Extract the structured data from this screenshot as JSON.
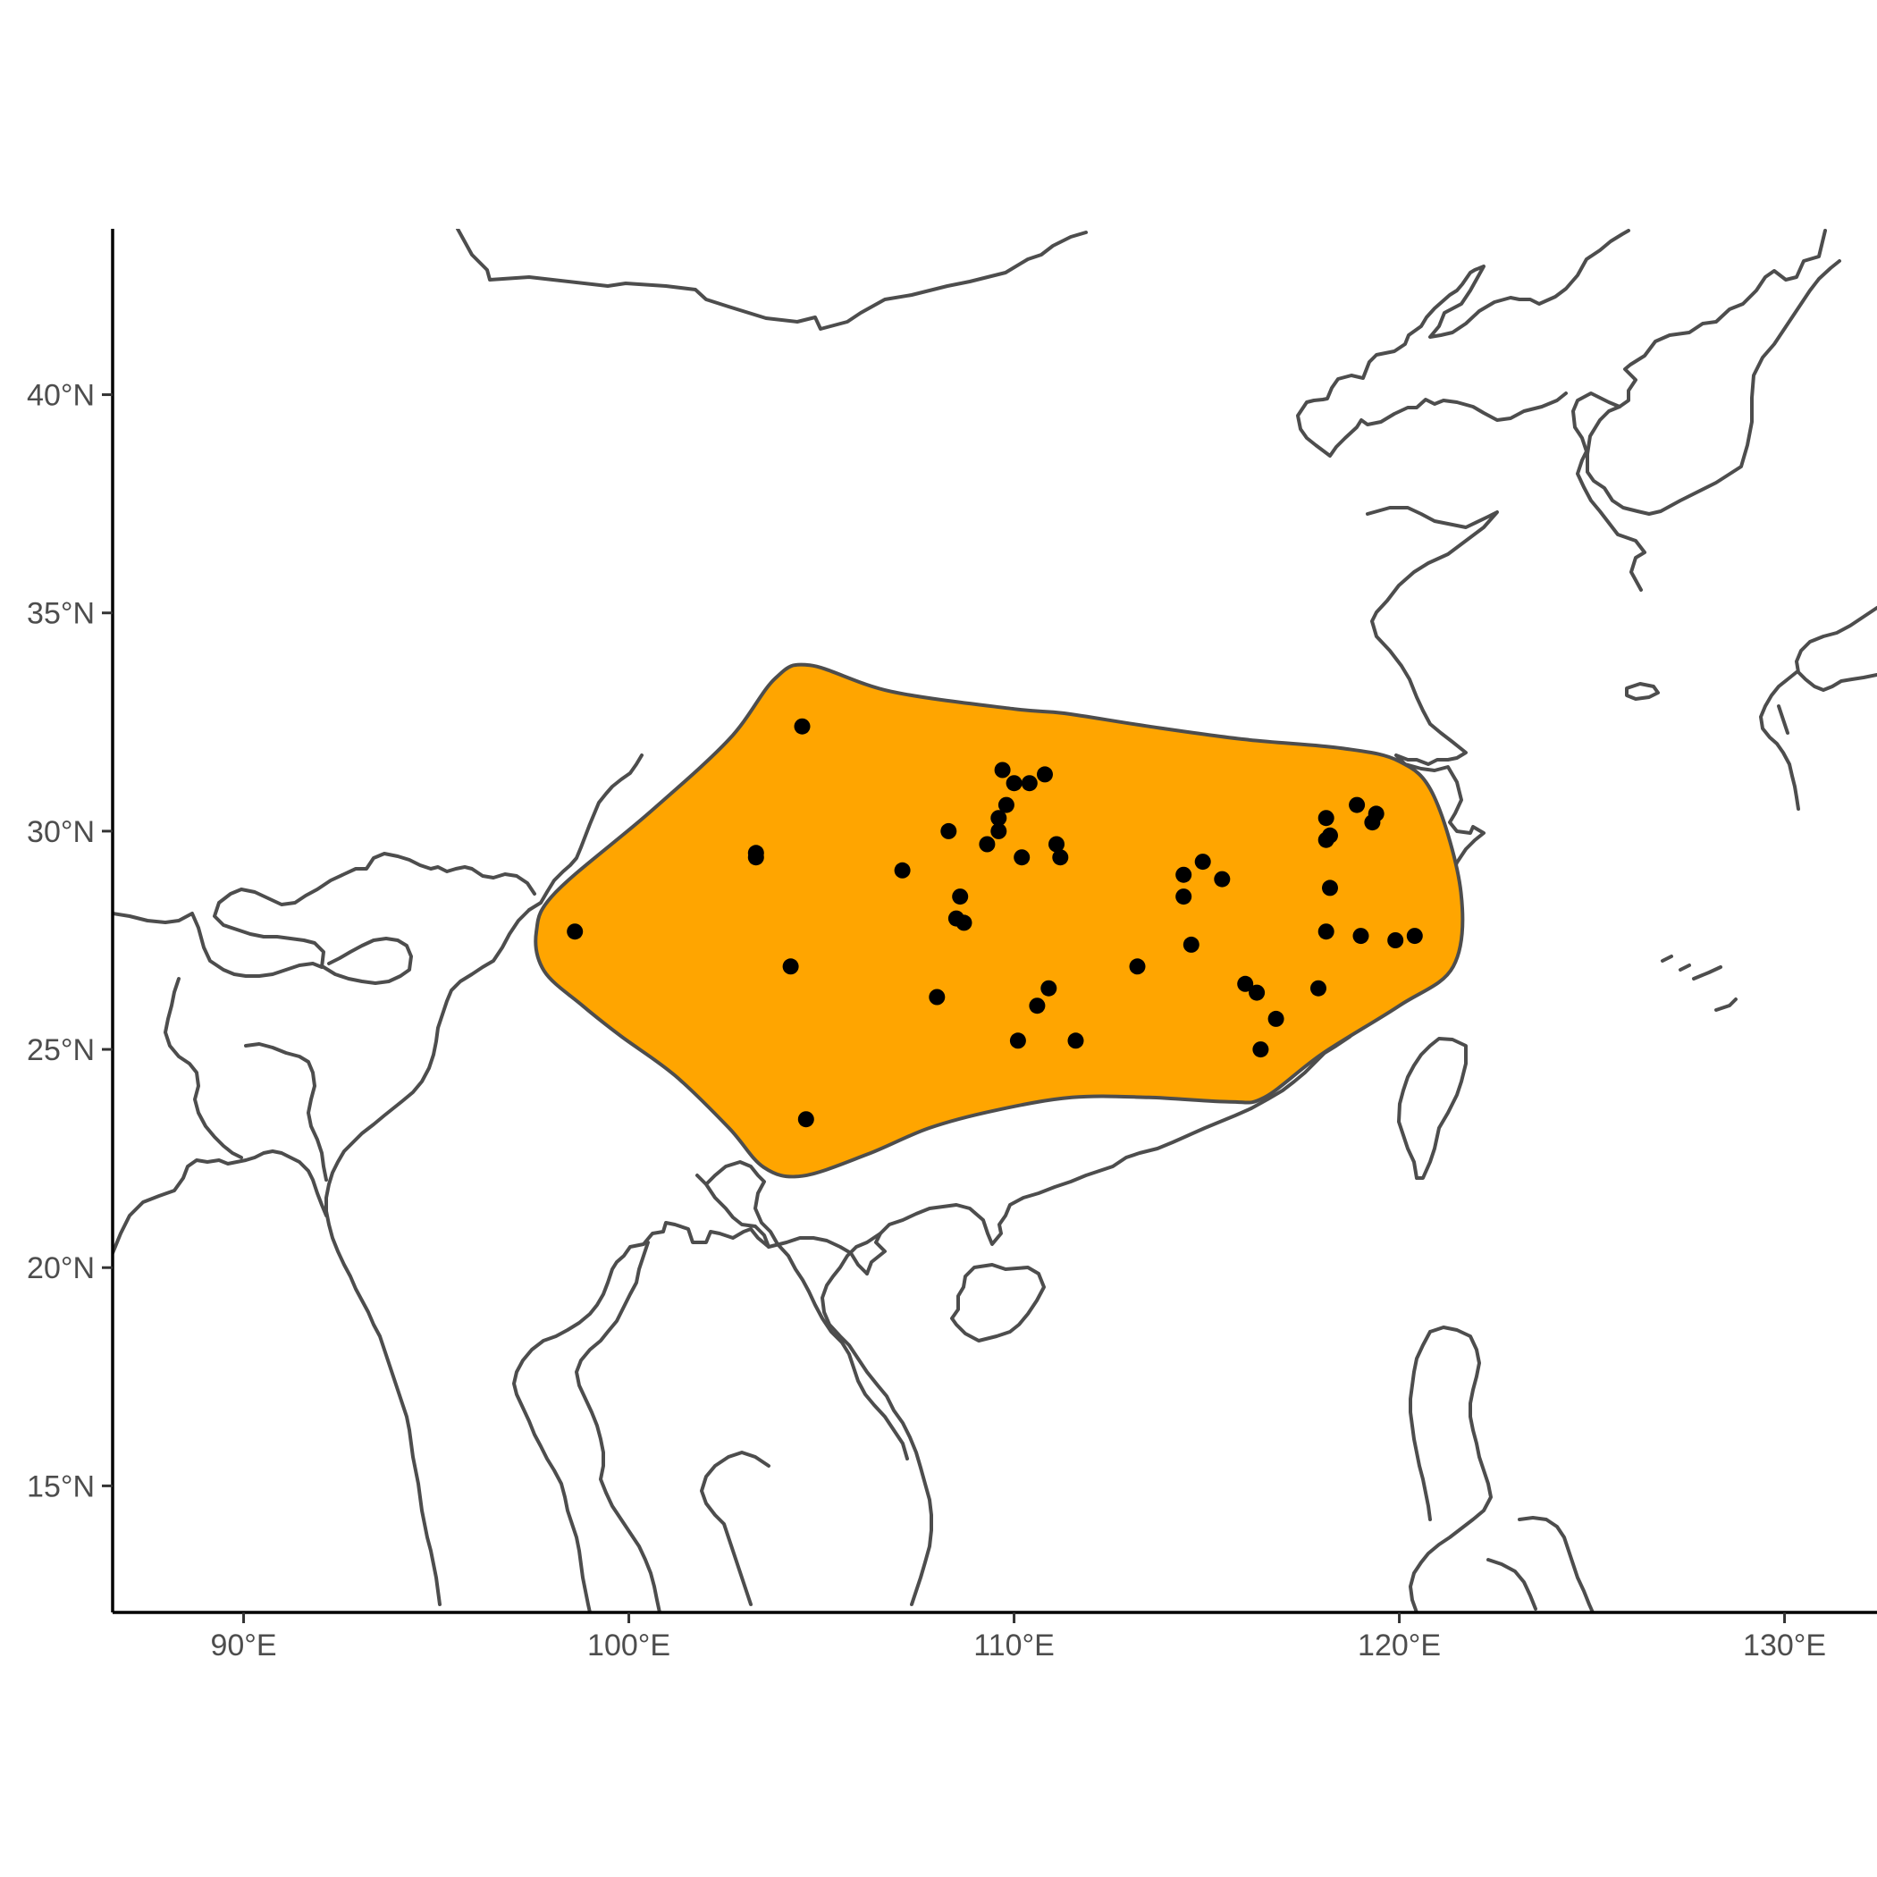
{
  "map": {
    "extent": {
      "lon": [
        86.6,
        132.4
      ],
      "lat": [
        12.1,
        43.8
      ]
    },
    "colors": {
      "range_fill": "#FFA500",
      "coastline": "#4d4d4d",
      "points": "#000000",
      "axis": "#000000"
    },
    "x_axis": {
      "ticks": [
        {
          "lon": 90,
          "label": "90°E"
        },
        {
          "lon": 100,
          "label": "100°E"
        },
        {
          "lon": 110,
          "label": "110°E"
        },
        {
          "lon": 120,
          "label": "120°E"
        },
        {
          "lon": 130,
          "label": "130°E"
        }
      ]
    },
    "y_axis": {
      "ticks": [
        {
          "lat": 15,
          "label": "15°N"
        },
        {
          "lat": 20,
          "label": "20°N"
        },
        {
          "lat": 25,
          "label": "25°N"
        },
        {
          "lat": 30,
          "label": "30°N"
        },
        {
          "lat": 35,
          "label": "35°N"
        },
        {
          "lat": 40,
          "label": "40°N"
        }
      ]
    },
    "range_polygon": [
      [
        98.1,
        28.6
      ],
      [
        100.5,
        30.4
      ],
      [
        102.6,
        32.1
      ],
      [
        103.8,
        33.5
      ],
      [
        104.7,
        33.8
      ],
      [
        106.8,
        33.2
      ],
      [
        110.0,
        32.8
      ],
      [
        111.3,
        32.7
      ],
      [
        113.5,
        32.4
      ],
      [
        116.0,
        32.1
      ],
      [
        118.5,
        31.9
      ],
      [
        120.0,
        31.6
      ],
      [
        120.9,
        30.8
      ],
      [
        121.6,
        28.6
      ],
      [
        121.4,
        26.9
      ],
      [
        120.0,
        26.0
      ],
      [
        118.0,
        24.9
      ],
      [
        116.5,
        23.9
      ],
      [
        115.6,
        23.8
      ],
      [
        113.5,
        23.9
      ],
      [
        111.5,
        23.9
      ],
      [
        109.5,
        23.6
      ],
      [
        107.8,
        23.2
      ],
      [
        106.2,
        22.6
      ],
      [
        104.5,
        22.1
      ],
      [
        103.5,
        22.3
      ],
      [
        102.6,
        23.2
      ],
      [
        101.2,
        24.4
      ],
      [
        99.8,
        25.3
      ],
      [
        98.8,
        26.0
      ],
      [
        97.8,
        26.8
      ],
      [
        97.6,
        27.7
      ]
    ],
    "occurrences": [
      [
        104.5,
        32.4
      ],
      [
        103.3,
        29.5
      ],
      [
        103.3,
        29.4
      ],
      [
        98.6,
        27.7
      ],
      [
        104.2,
        26.9
      ],
      [
        104.6,
        23.4
      ],
      [
        107.1,
        29.1
      ],
      [
        108.3,
        30.0
      ],
      [
        109.3,
        29.7
      ],
      [
        109.6,
        30.3
      ],
      [
        109.6,
        30.0
      ],
      [
        109.7,
        31.4
      ],
      [
        109.8,
        30.6
      ],
      [
        110.0,
        31.1
      ],
      [
        110.4,
        31.1
      ],
      [
        110.8,
        31.3
      ],
      [
        110.2,
        29.4
      ],
      [
        111.1,
        29.7
      ],
      [
        111.2,
        29.4
      ],
      [
        108.6,
        28.5
      ],
      [
        108.5,
        28.0
      ],
      [
        108.7,
        27.9
      ],
      [
        108.0,
        26.2
      ],
      [
        110.6,
        26.0
      ],
      [
        110.9,
        26.4
      ],
      [
        110.1,
        25.2
      ],
      [
        111.6,
        25.2
      ],
      [
        113.2,
        26.9
      ],
      [
        114.4,
        29.0
      ],
      [
        114.4,
        28.5
      ],
      [
        114.9,
        29.3
      ],
      [
        115.4,
        28.9
      ],
      [
        114.6,
        27.4
      ],
      [
        116.0,
        26.5
      ],
      [
        116.3,
        26.3
      ],
      [
        116.8,
        25.7
      ],
      [
        116.4,
        25.0
      ],
      [
        117.9,
        26.4
      ],
      [
        118.1,
        27.7
      ],
      [
        118.2,
        28.7
      ],
      [
        118.1,
        29.8
      ],
      [
        118.2,
        29.9
      ],
      [
        118.1,
        30.3
      ],
      [
        118.9,
        30.6
      ],
      [
        119.3,
        30.2
      ],
      [
        119.4,
        30.4
      ],
      [
        119.0,
        27.6
      ],
      [
        119.9,
        27.5
      ],
      [
        120.4,
        27.6
      ]
    ]
  }
}
